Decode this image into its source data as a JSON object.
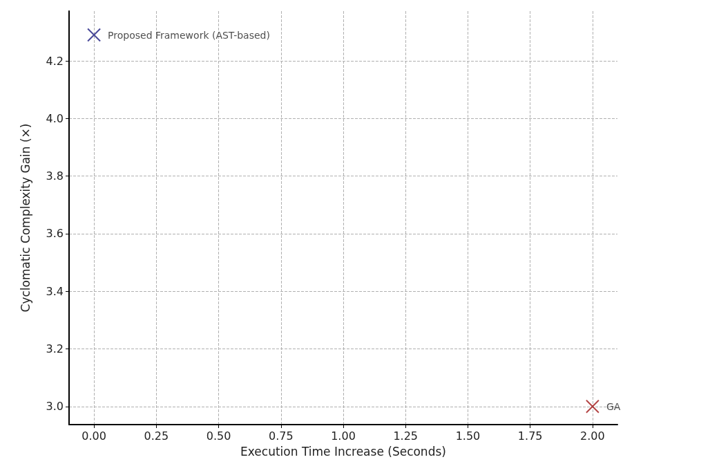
{
  "chart_data": {
    "type": "scatter",
    "xlabel": "Execution Time Increase (Seconds)",
    "ylabel": "Cyclomatic Complexity Gain (×)",
    "series": [
      {
        "color": "#1c1c80",
        "x": [
          0.0
        ],
        "values": [
          4.29
        ]
      },
      {
        "color": "#a01818",
        "x": [
          2.0
        ],
        "values": [
          3.0
        ]
      }
    ],
    "annotations": [
      {
        "text": "Proposed Framework (AST-based)",
        "x": 0.0,
        "y": 4.29
      },
      {
        "text": "GA",
        "x": 2.0,
        "y": 3.0
      }
    ],
    "xlim": [
      -0.1,
      2.1
    ],
    "xticks": [
      {
        "value": 0,
        "label": "0.00"
      },
      {
        "value": 0.25,
        "label": "0.25"
      },
      {
        "value": 0.5,
        "label": "0.50"
      },
      {
        "value": 0.75,
        "label": "0.75"
      },
      {
        "value": 1,
        "label": "1.00"
      },
      {
        "value": 1.25,
        "label": "1.25"
      },
      {
        "value": 1.5,
        "label": "1.50"
      },
      {
        "value": 1.75,
        "label": "1.75"
      },
      {
        "value": 2,
        "label": "2.00"
      }
    ],
    "ylim": [
      2.937,
      4.373
    ],
    "yticks": [
      {
        "value": 3,
        "label": "3.0"
      },
      3.2,
      3.4,
      3.6,
      3.8,
      {
        "value": 4,
        "label": "4.0"
      },
      4.2
    ],
    "grid": true,
    "marker": "cross",
    "line_style": "dashed"
  }
}
